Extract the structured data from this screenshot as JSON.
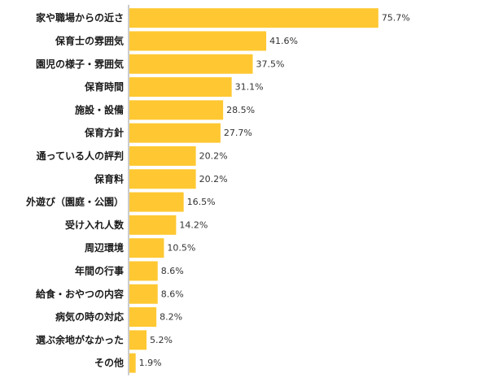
{
  "chart_data": {
    "type": "bar",
    "orientation": "horizontal",
    "title": "",
    "xlabel": "",
    "ylabel": "",
    "xlim": [
      0,
      100
    ],
    "value_suffix": "%",
    "categories": [
      "家や職場からの近さ",
      "保育士の雰囲気",
      "園児の様子・雰囲気",
      "保育時間",
      "施設・設備",
      "保育方針",
      "通っている人の評判",
      "保育料",
      "外遊び（園庭・公園）",
      "受け入れ人数",
      "周辺環境",
      "年間の行事",
      "給食・おやつの内容",
      "病気の時の対応",
      "選ぶ余地がなかった",
      "その他"
    ],
    "values": [
      75.7,
      41.6,
      37.5,
      31.1,
      28.5,
      27.7,
      20.2,
      20.2,
      16.5,
      14.2,
      10.5,
      8.6,
      8.6,
      8.2,
      5.2,
      1.9
    ],
    "value_labels": [
      "75.7%",
      "41.6%",
      "37.5%",
      "31.1%",
      "28.5%",
      "27.7%",
      "20.2%",
      "20.2%",
      "16.5%",
      "14.2%",
      "10.5%",
      "8.6%",
      "8.6%",
      "8.2%",
      "5.2%",
      "1.9%"
    ],
    "grid": false,
    "legend": "none",
    "colors": {
      "bar": "#FFC832",
      "axis": "#999999",
      "label": "#1a1a1a",
      "value": "#333333"
    }
  }
}
